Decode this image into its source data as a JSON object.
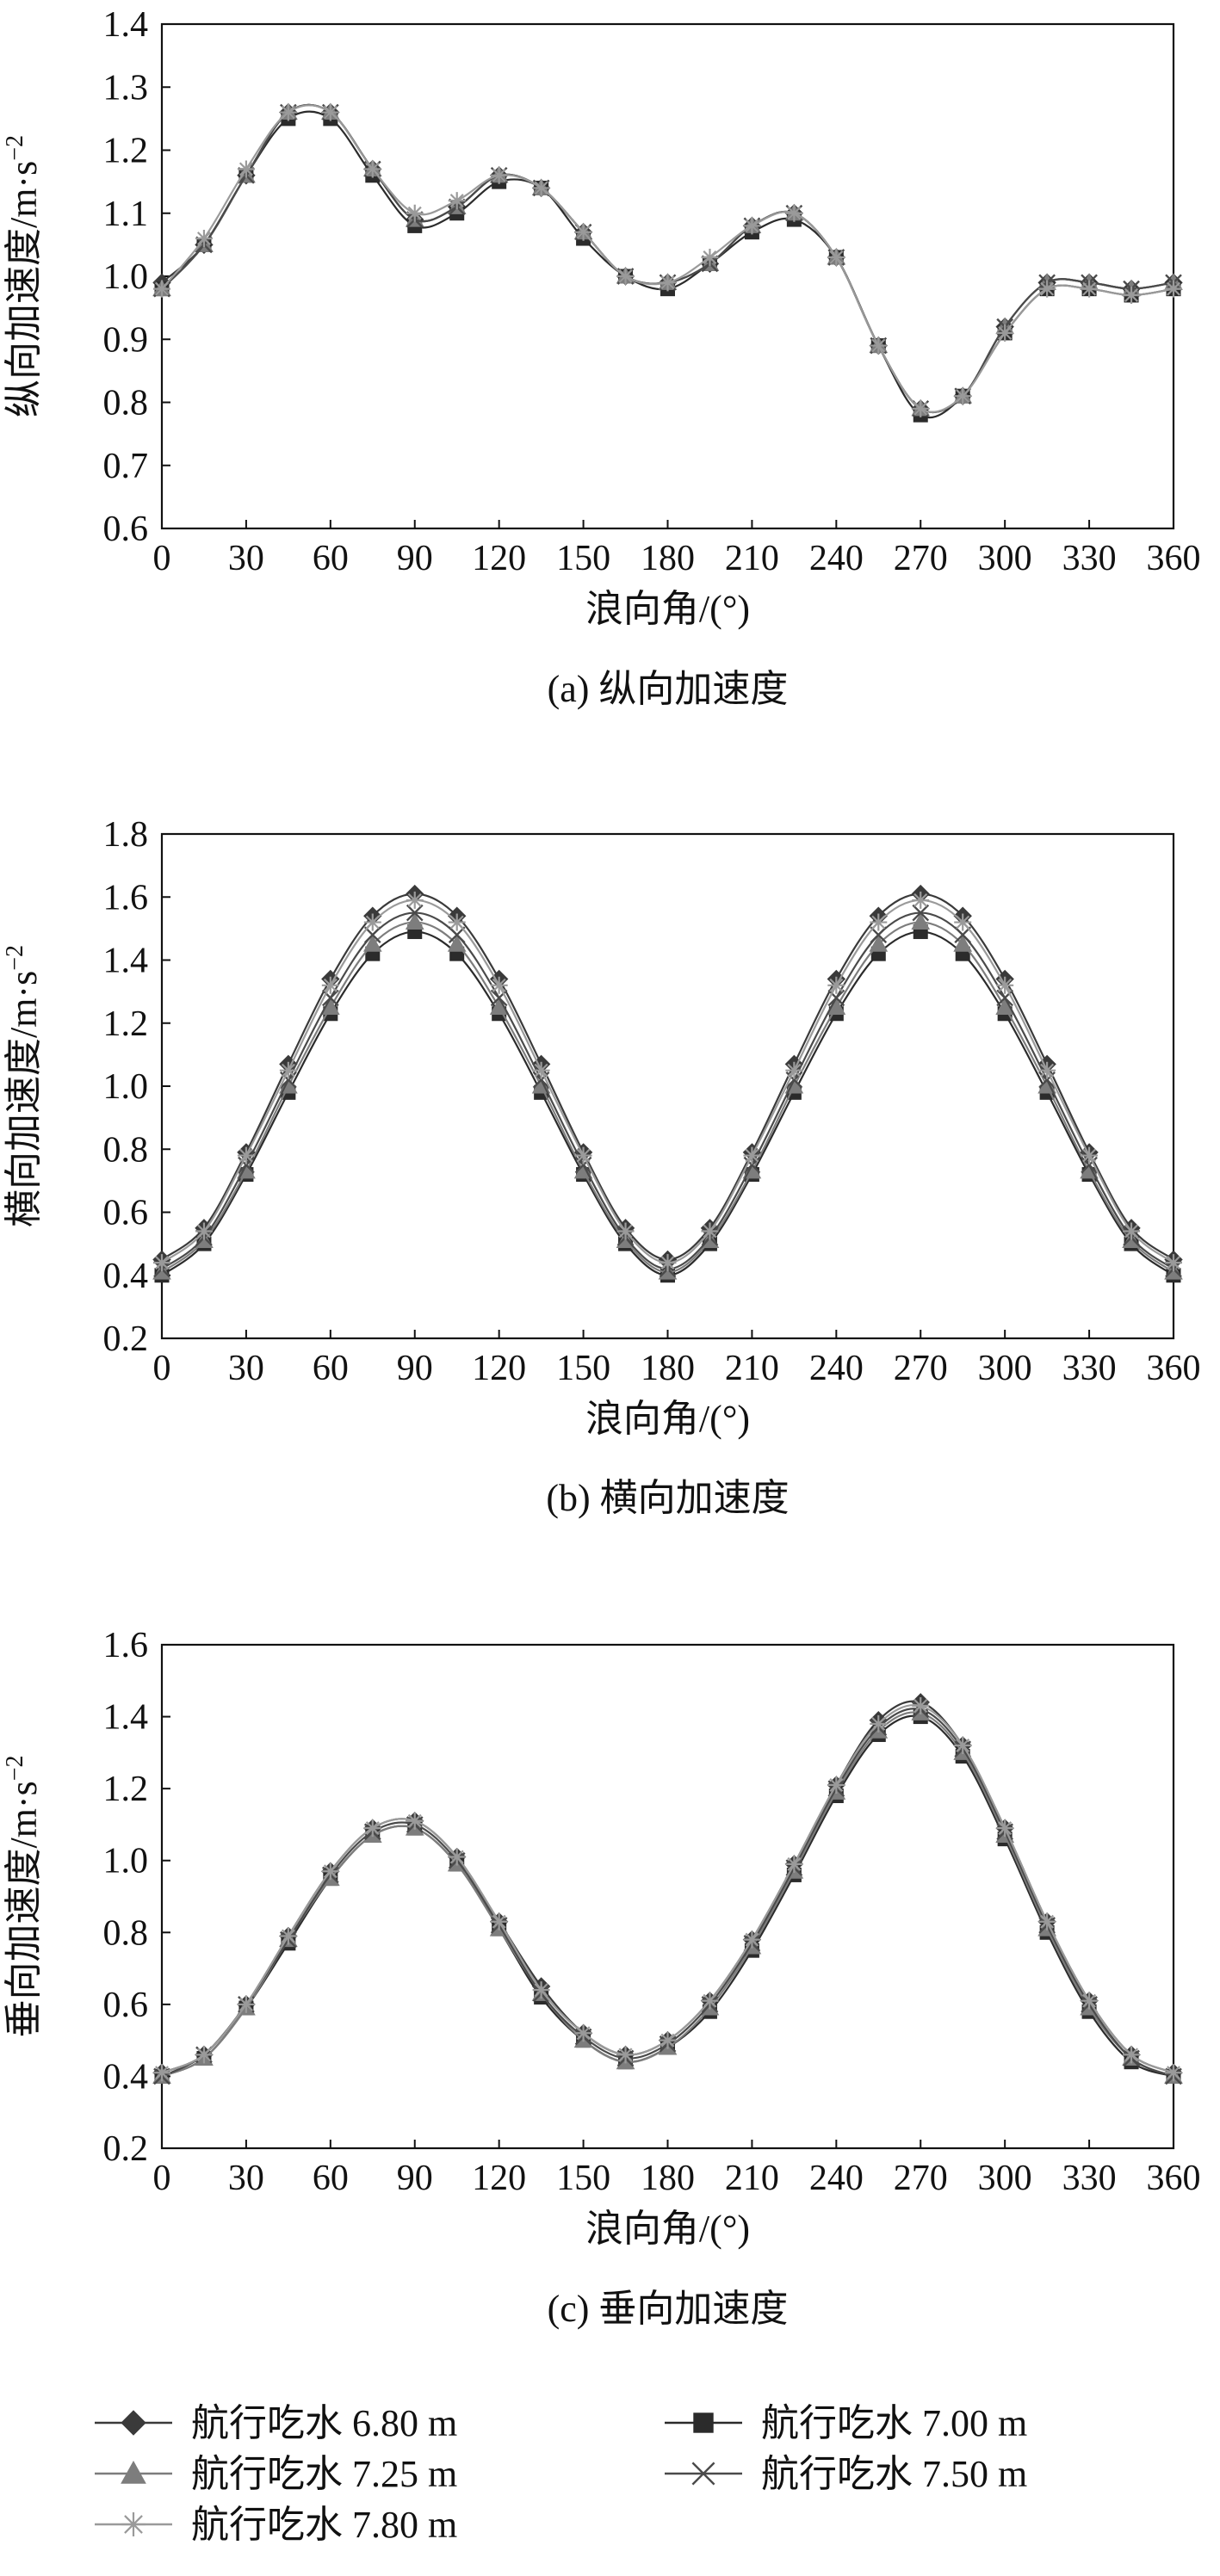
{
  "chart_data": [
    {
      "type": "line",
      "caption": "(a) 纵向加速度",
      "xlabel": "浪向角/(°)",
      "ylabel": "纵向加速度/m·s",
      "ylabel_sup": "−2",
      "xlim": [
        0,
        360
      ],
      "ylim": [
        0.6,
        1.4
      ],
      "x_ticks": [
        0,
        30,
        60,
        90,
        120,
        150,
        180,
        210,
        240,
        270,
        300,
        330,
        360
      ],
      "y_ticks": [
        0.6,
        0.7,
        0.8,
        0.9,
        1.0,
        1.1,
        1.2,
        1.3,
        1.4
      ],
      "y_decimals": 1,
      "x": [
        0,
        15,
        30,
        45,
        60,
        75,
        90,
        105,
        120,
        135,
        150,
        165,
        180,
        195,
        210,
        225,
        240,
        255,
        270,
        285,
        300,
        315,
        330,
        345,
        360
      ],
      "series": [
        {
          "name": "航行吃水 6.80 m",
          "values": [
            0.99,
            1.05,
            1.16,
            1.26,
            1.26,
            1.17,
            1.09,
            1.11,
            1.16,
            1.14,
            1.07,
            1.0,
            0.99,
            1.02,
            1.08,
            1.1,
            1.03,
            0.89,
            0.79,
            0.81,
            0.92,
            0.99,
            0.99,
            0.98,
            0.99
          ]
        },
        {
          "name": "航行吃水 7.00 m",
          "values": [
            0.98,
            1.05,
            1.16,
            1.25,
            1.25,
            1.16,
            1.08,
            1.1,
            1.15,
            1.14,
            1.06,
            1.0,
            0.98,
            1.02,
            1.07,
            1.09,
            1.03,
            0.89,
            0.78,
            0.81,
            0.91,
            0.98,
            0.98,
            0.97,
            0.98
          ]
        },
        {
          "name": "航行吃水 7.25 m",
          "values": [
            0.98,
            1.05,
            1.16,
            1.26,
            1.26,
            1.17,
            1.09,
            1.11,
            1.16,
            1.14,
            1.07,
            1.0,
            0.99,
            1.02,
            1.08,
            1.1,
            1.03,
            0.89,
            0.79,
            0.81,
            0.92,
            0.99,
            0.99,
            0.98,
            0.99
          ]
        },
        {
          "name": "航行吃水 7.50 m",
          "values": [
            0.98,
            1.05,
            1.16,
            1.26,
            1.26,
            1.17,
            1.09,
            1.11,
            1.16,
            1.14,
            1.07,
            1.0,
            0.99,
            1.02,
            1.08,
            1.1,
            1.03,
            0.89,
            0.79,
            0.81,
            0.92,
            0.99,
            0.99,
            0.98,
            0.99
          ]
        },
        {
          "name": "航行吃水 7.80 m",
          "values": [
            0.98,
            1.06,
            1.17,
            1.26,
            1.26,
            1.17,
            1.1,
            1.12,
            1.16,
            1.14,
            1.07,
            1.0,
            0.99,
            1.03,
            1.08,
            1.1,
            1.03,
            0.89,
            0.79,
            0.81,
            0.91,
            0.98,
            0.98,
            0.97,
            0.98
          ]
        }
      ]
    },
    {
      "type": "line",
      "caption": "(b) 横向加速度",
      "xlabel": "浪向角/(°)",
      "ylabel": "横向加速度/m·s",
      "ylabel_sup": "−2",
      "xlim": [
        0,
        360
      ],
      "ylim": [
        0.2,
        1.8
      ],
      "x_ticks": [
        0,
        30,
        60,
        90,
        120,
        150,
        180,
        210,
        240,
        270,
        300,
        330,
        360
      ],
      "y_ticks": [
        0.2,
        0.4,
        0.6,
        0.8,
        1.0,
        1.2,
        1.4,
        1.6,
        1.8
      ],
      "y_decimals": 1,
      "x": [
        0,
        15,
        30,
        45,
        60,
        75,
        90,
        105,
        120,
        135,
        150,
        165,
        180,
        195,
        210,
        225,
        240,
        255,
        270,
        285,
        300,
        315,
        330,
        345,
        360
      ],
      "series": [
        {
          "name": "航行吃水 6.80 m",
          "values": [
            0.45,
            0.55,
            0.79,
            1.07,
            1.34,
            1.54,
            1.61,
            1.54,
            1.34,
            1.07,
            0.79,
            0.55,
            0.45,
            0.55,
            0.79,
            1.07,
            1.34,
            1.54,
            1.61,
            1.54,
            1.34,
            1.07,
            0.79,
            0.55,
            0.45
          ]
        },
        {
          "name": "航行吃水 7.00 m",
          "values": [
            0.4,
            0.5,
            0.72,
            0.98,
            1.23,
            1.42,
            1.49,
            1.42,
            1.23,
            0.98,
            0.72,
            0.5,
            0.4,
            0.5,
            0.72,
            0.98,
            1.23,
            1.42,
            1.49,
            1.42,
            1.23,
            0.98,
            0.72,
            0.5,
            0.4
          ]
        },
        {
          "name": "航行吃水 7.25 m",
          "values": [
            0.41,
            0.51,
            0.73,
            1.0,
            1.25,
            1.45,
            1.52,
            1.45,
            1.25,
            1.0,
            0.73,
            0.51,
            0.41,
            0.51,
            0.73,
            1.0,
            1.25,
            1.45,
            1.52,
            1.45,
            1.25,
            1.0,
            0.73,
            0.51,
            0.41
          ]
        },
        {
          "name": "航行吃水 7.50 m",
          "values": [
            0.42,
            0.52,
            0.75,
            1.02,
            1.28,
            1.48,
            1.55,
            1.48,
            1.28,
            1.02,
            0.75,
            0.52,
            0.42,
            0.52,
            0.75,
            1.02,
            1.28,
            1.48,
            1.55,
            1.48,
            1.28,
            1.02,
            0.75,
            0.52,
            0.42
          ]
        },
        {
          "name": "航行吃水 7.80 m",
          "values": [
            0.44,
            0.54,
            0.78,
            1.05,
            1.32,
            1.52,
            1.59,
            1.52,
            1.32,
            1.05,
            0.78,
            0.54,
            0.44,
            0.54,
            0.78,
            1.05,
            1.32,
            1.52,
            1.59,
            1.52,
            1.32,
            1.05,
            0.78,
            0.54,
            0.44
          ]
        }
      ]
    },
    {
      "type": "line",
      "caption": "(c) 垂向加速度",
      "xlabel": "浪向角/(°)",
      "ylabel": "垂向加速度/m·s",
      "ylabel_sup": "−2",
      "xlim": [
        0,
        360
      ],
      "ylim": [
        0.2,
        1.6
      ],
      "x_ticks": [
        0,
        30,
        60,
        90,
        120,
        150,
        180,
        210,
        240,
        270,
        300,
        330,
        360
      ],
      "y_ticks": [
        0.2,
        0.4,
        0.6,
        0.8,
        1.0,
        1.2,
        1.4,
        1.6
      ],
      "y_decimals": 1,
      "x": [
        0,
        15,
        30,
        45,
        60,
        75,
        90,
        105,
        120,
        135,
        150,
        165,
        180,
        195,
        210,
        225,
        240,
        255,
        270,
        285,
        300,
        315,
        330,
        345,
        360
      ],
      "series": [
        {
          "name": "航行吃水 6.80 m",
          "values": [
            0.41,
            0.46,
            0.6,
            0.79,
            0.97,
            1.09,
            1.11,
            1.01,
            0.83,
            0.65,
            0.52,
            0.46,
            0.5,
            0.61,
            0.78,
            0.99,
            1.21,
            1.39,
            1.44,
            1.32,
            1.09,
            0.83,
            0.61,
            0.46,
            0.41
          ]
        },
        {
          "name": "航行吃水 7.00 m",
          "values": [
            0.4,
            0.45,
            0.59,
            0.77,
            0.95,
            1.07,
            1.09,
            0.99,
            0.81,
            0.62,
            0.5,
            0.44,
            0.48,
            0.58,
            0.75,
            0.96,
            1.18,
            1.35,
            1.4,
            1.29,
            1.06,
            0.8,
            0.58,
            0.44,
            0.4
          ]
        },
        {
          "name": "航行吃水 7.25 m",
          "values": [
            0.4,
            0.45,
            0.59,
            0.78,
            0.95,
            1.07,
            1.09,
            0.99,
            0.81,
            0.63,
            0.5,
            0.44,
            0.48,
            0.59,
            0.76,
            0.97,
            1.19,
            1.36,
            1.41,
            1.3,
            1.07,
            0.81,
            0.59,
            0.45,
            0.4
          ]
        },
        {
          "name": "航行吃水 7.50 m",
          "values": [
            0.4,
            0.46,
            0.6,
            0.78,
            0.96,
            1.08,
            1.1,
            1.0,
            0.82,
            0.63,
            0.51,
            0.45,
            0.49,
            0.6,
            0.77,
            0.98,
            1.2,
            1.37,
            1.42,
            1.31,
            1.08,
            0.82,
            0.6,
            0.45,
            0.4
          ]
        },
        {
          "name": "航行吃水 7.80 m",
          "values": [
            0.41,
            0.46,
            0.6,
            0.79,
            0.97,
            1.09,
            1.11,
            1.01,
            0.83,
            0.64,
            0.52,
            0.46,
            0.5,
            0.61,
            0.78,
            0.99,
            1.21,
            1.38,
            1.43,
            1.32,
            1.09,
            0.83,
            0.61,
            0.46,
            0.41
          ]
        }
      ]
    }
  ],
  "legend": {
    "items": [
      {
        "label": "航行吃水 6.80 m",
        "marker": "diamond",
        "color": "#3a3a3a"
      },
      {
        "label": "航行吃水 7.00 m",
        "marker": "square",
        "color": "#2b2b2b"
      },
      {
        "label": "航行吃水 7.25 m",
        "marker": "triangle",
        "color": "#7d7d7d"
      },
      {
        "label": "航行吃水 7.50 m",
        "marker": "x",
        "color": "#4a4a4a"
      },
      {
        "label": "航行吃水 7.80 m",
        "marker": "asterisk",
        "color": "#9a9a9a"
      }
    ]
  }
}
